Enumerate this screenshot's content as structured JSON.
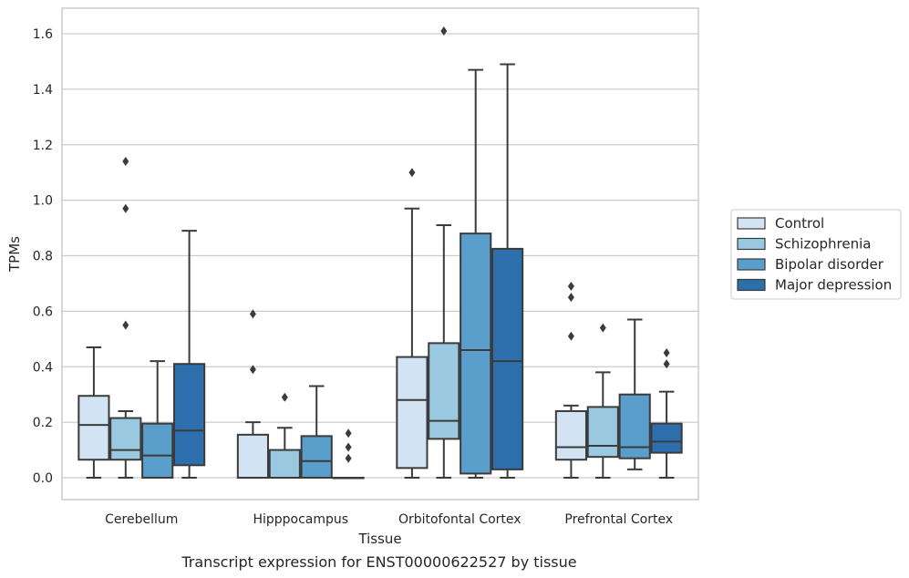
{
  "chart_data": {
    "type": "box",
    "title": "",
    "caption": "Transcript expression for ENST00000622527 by tissue",
    "xlabel": "Tissue",
    "ylabel": "TPMs",
    "ylim": [
      -0.08,
      1.69
    ],
    "yticks": [
      "0.0",
      "0.2",
      "0.4",
      "0.6",
      "0.8",
      "1.0",
      "1.2",
      "1.4",
      "1.6"
    ],
    "grid": "horizontal",
    "legend_position": "right",
    "categories": [
      "Cerebellum",
      "Hipppocampus",
      "Orbitofontal Cortex",
      "Prefrontal Cortex"
    ],
    "series": [
      {
        "name": "Control",
        "color": "#d2e3f3",
        "boxes": [
          {
            "whisker_low": 0.0,
            "q1": 0.065,
            "median": 0.19,
            "q3": 0.295,
            "whisker_high": 0.47,
            "outliers": []
          },
          {
            "whisker_low": 0.0,
            "q1": 0.0,
            "median": 0.0,
            "q3": 0.155,
            "whisker_high": 0.2,
            "outliers": [
              0.39,
              0.59
            ]
          },
          {
            "whisker_low": 0.0,
            "q1": 0.035,
            "median": 0.28,
            "q3": 0.435,
            "whisker_high": 0.97,
            "outliers": [
              1.1
            ]
          },
          {
            "whisker_low": 0.0,
            "q1": 0.065,
            "median": 0.11,
            "q3": 0.24,
            "whisker_high": 0.26,
            "outliers": [
              0.51,
              0.65,
              0.69
            ]
          }
        ]
      },
      {
        "name": "Schizophrenia",
        "color": "#9ac8e0",
        "boxes": [
          {
            "whisker_low": 0.0,
            "q1": 0.065,
            "median": 0.1,
            "q3": 0.215,
            "whisker_high": 0.24,
            "outliers": [
              0.55,
              0.97,
              1.14
            ]
          },
          {
            "whisker_low": 0.0,
            "q1": 0.0,
            "median": 0.0,
            "q3": 0.1,
            "whisker_high": 0.18,
            "outliers": [
              0.29
            ]
          },
          {
            "whisker_low": 0.0,
            "q1": 0.14,
            "median": 0.205,
            "q3": 0.485,
            "whisker_high": 0.91,
            "outliers": [
              1.61
            ]
          },
          {
            "whisker_low": 0.0,
            "q1": 0.075,
            "median": 0.115,
            "q3": 0.255,
            "whisker_high": 0.38,
            "outliers": [
              0.54
            ]
          }
        ]
      },
      {
        "name": "Bipolar disorder",
        "color": "#5a9fcb",
        "boxes": [
          {
            "whisker_low": 0.0,
            "q1": 0.0,
            "median": 0.08,
            "q3": 0.195,
            "whisker_high": 0.42,
            "outliers": []
          },
          {
            "whisker_low": 0.0,
            "q1": 0.0,
            "median": 0.06,
            "q3": 0.15,
            "whisker_high": 0.33,
            "outliers": []
          },
          {
            "whisker_low": 0.0,
            "q1": 0.015,
            "median": 0.46,
            "q3": 0.88,
            "whisker_high": 1.47,
            "outliers": []
          },
          {
            "whisker_low": 0.03,
            "q1": 0.07,
            "median": 0.11,
            "q3": 0.3,
            "whisker_high": 0.57,
            "outliers": []
          }
        ]
      },
      {
        "name": "Major depression",
        "color": "#2c6fac",
        "boxes": [
          {
            "whisker_low": 0.0,
            "q1": 0.045,
            "median": 0.17,
            "q3": 0.41,
            "whisker_high": 0.89,
            "outliers": []
          },
          {
            "whisker_low": 0.0,
            "q1": 0.0,
            "median": 0.0,
            "q3": 0.0,
            "whisker_high": 0.0,
            "outliers": [
              0.07,
              0.11,
              0.16
            ]
          },
          {
            "whisker_low": 0.0,
            "q1": 0.03,
            "median": 0.42,
            "q3": 0.825,
            "whisker_high": 1.49,
            "outliers": []
          },
          {
            "whisker_low": 0.0,
            "q1": 0.09,
            "median": 0.13,
            "q3": 0.195,
            "whisker_high": 0.31,
            "outliers": [
              0.41,
              0.45
            ]
          }
        ]
      }
    ]
  }
}
